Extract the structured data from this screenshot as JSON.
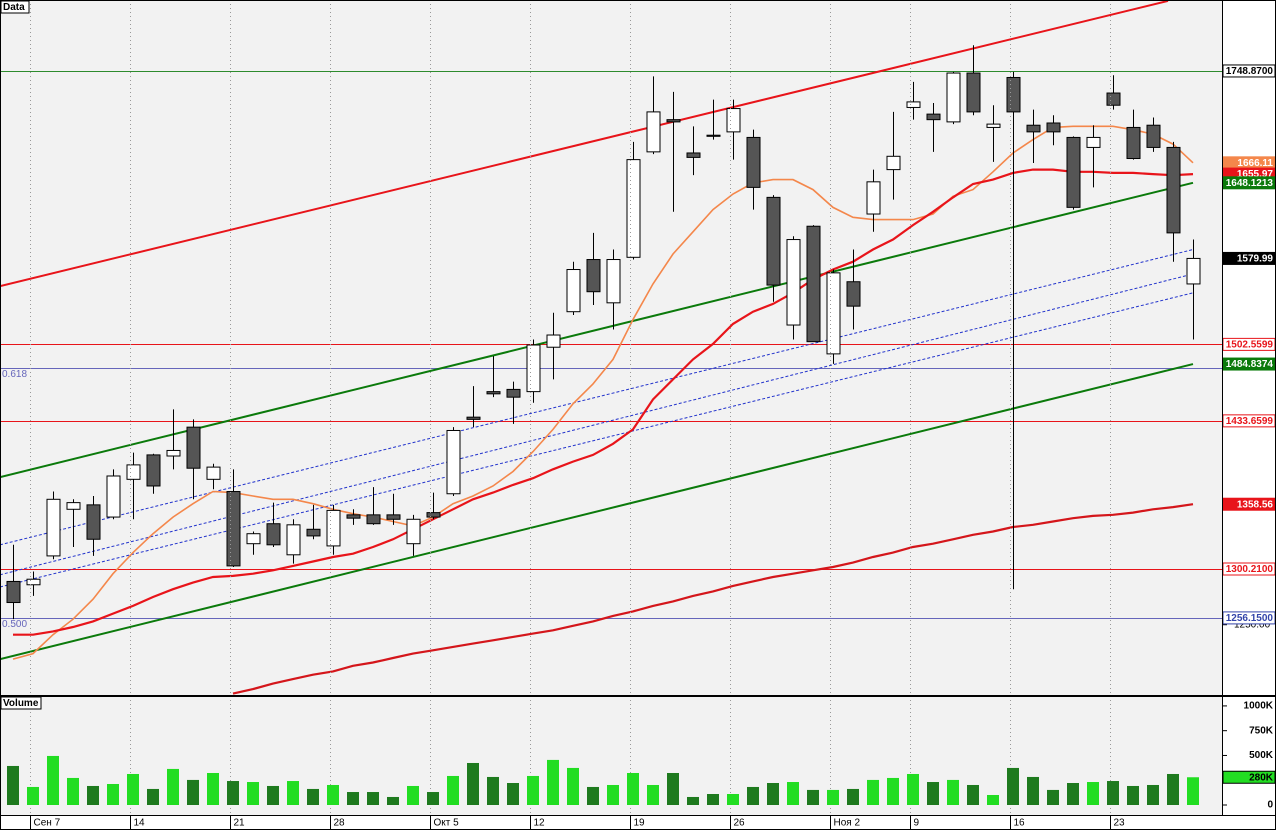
{
  "chart_data": [
    {
      "type": "candlestick",
      "title": "Data",
      "categories": [
        null,
        "Сен 7",
        null,
        null,
        null,
        null,
        "14",
        null,
        null,
        null,
        null,
        "21",
        null,
        null,
        null,
        null,
        "28",
        null,
        null,
        null,
        null,
        "Окт 5",
        null,
        null,
        null,
        null,
        "12",
        null,
        null,
        null,
        null,
        "19",
        null,
        null,
        null,
        null,
        "26",
        null,
        null,
        null,
        null,
        "Ноя 2",
        null,
        null,
        null,
        "9",
        null,
        null,
        null,
        null,
        "16",
        null,
        null,
        null,
        null,
        "23",
        null,
        null,
        null,
        null
      ],
      "open": [
        1289,
        1286,
        1312,
        1354,
        1358,
        1347,
        1381,
        1403,
        1402,
        1428,
        1381,
        1370,
        1323,
        1341,
        1313,
        1336,
        1321,
        1349,
        1349,
        1349,
        1323,
        1351,
        1368,
        1437,
        1460,
        1462,
        1460,
        1500,
        1532,
        1579,
        1540,
        1581,
        1676,
        1705,
        1675,
        1691,
        1694,
        1689,
        1635,
        1520,
        1609,
        1494,
        1559,
        1620,
        1660,
        1716,
        1710,
        1703,
        1747,
        1698,
        1743,
        1700,
        1702,
        1689,
        1680,
        1729,
        1698,
        1700,
        1680,
        1557
      ],
      "high": [
        1322,
        1298,
        1370,
        1363,
        1366,
        1390,
        1405,
        1404,
        1444,
        1435,
        1395,
        1390,
        1334,
        1360,
        1345,
        1358,
        1358,
        1354,
        1374,
        1368,
        1349,
        1369,
        1428,
        1465,
        1492,
        1469,
        1507,
        1531,
        1577,
        1603,
        1588,
        1685,
        1744,
        1730,
        1699,
        1723,
        1723,
        1696,
        1637,
        1600,
        1610,
        1570,
        1588,
        1660,
        1712,
        1739,
        1720,
        1748,
        1772,
        1718,
        1748,
        1714,
        1709,
        1690,
        1700,
        1745,
        1714,
        1707,
        1685,
        1597
      ],
      "low": [
        1255,
        1276,
        1309,
        1320,
        1312,
        1345,
        1345,
        1368,
        1390,
        1363,
        1372,
        1302,
        1313,
        1320,
        1305,
        1327,
        1313,
        1340,
        1340,
        1340,
        1312,
        1345,
        1366,
        1428,
        1455,
        1431,
        1450,
        1471,
        1529,
        1538,
        1516,
        1579,
        1674,
        1622,
        1655,
        1687,
        1669,
        1624,
        1541,
        1507,
        1505,
        1485,
        1516,
        1604,
        1633,
        1705,
        1676,
        1701,
        1709,
        1667,
        1282,
        1666,
        1682,
        1624,
        1644,
        1714,
        1669,
        1676,
        1577,
        1507
      ],
      "close": [
        1270,
        1291,
        1363,
        1360,
        1327,
        1384,
        1394,
        1375,
        1407,
        1391,
        1392,
        1303,
        1332,
        1322,
        1340,
        1330,
        1353,
        1346,
        1341,
        1345,
        1345,
        1347,
        1425,
        1435,
        1458,
        1455,
        1502,
        1511,
        1570,
        1550,
        1579,
        1669,
        1712,
        1703,
        1671,
        1690,
        1715,
        1644,
        1556,
        1597,
        1505,
        1567,
        1537,
        1649,
        1672,
        1721,
        1705,
        1747,
        1712,
        1701,
        1712,
        1694,
        1694,
        1626,
        1689,
        1718,
        1670,
        1680,
        1603,
        1579.99
      ],
      "up_color": "#ffffff",
      "down_color": "#555555",
      "series": [
        {
          "color": "#f4874b",
          "values": [
            1219,
            1224,
            1241,
            1255,
            1273,
            1296,
            1315,
            1332,
            1347,
            1359,
            1370,
            1369,
            1366,
            1363,
            1363,
            1359,
            1354,
            1350,
            1347,
            1343,
            1339,
            1347,
            1359,
            1366,
            1375,
            1388,
            1406,
            1426,
            1449,
            1467,
            1489,
            1525,
            1557,
            1584,
            1604,
            1624,
            1638,
            1648,
            1651,
            1651,
            1642,
            1626,
            1617,
            1615,
            1615,
            1615,
            1620,
            1636,
            1642,
            1658,
            1675,
            1687,
            1698,
            1699,
            1699,
            1699,
            1696,
            1692,
            1683,
            1666.11
          ]
        },
        {
          "color": "#e8141a",
          "values": [
            1241,
            1241,
            1244,
            1248,
            1253,
            1260,
            1267,
            1275,
            1282,
            1288,
            1293,
            1294,
            1296,
            1299,
            1303,
            1307,
            1311,
            1314,
            1320,
            1327,
            1336,
            1345,
            1354,
            1363,
            1369,
            1376,
            1382,
            1390,
            1397,
            1403,
            1413,
            1426,
            1453,
            1471,
            1489,
            1503,
            1521,
            1532,
            1539,
            1549,
            1561,
            1570,
            1577,
            1588,
            1597,
            1610,
            1622,
            1635,
            1647,
            1651,
            1657,
            1660,
            1660,
            1658,
            1658,
            1657,
            1657,
            1656,
            1655,
            1655.97
          ]
        },
        {
          "color": "#d4161b",
          "values": [
            null,
            null,
            null,
            null,
            null,
            null,
            null,
            null,
            null,
            null,
            null,
            1188,
            1192,
            1197,
            1201,
            1205,
            1208,
            1213,
            1216,
            1220,
            1224,
            1227,
            1230,
            1233,
            1236,
            1239,
            1242,
            1245,
            1249,
            1253,
            1258,
            1262,
            1267,
            1271,
            1276,
            1280,
            1285,
            1289,
            1293,
            1296,
            1299,
            1302,
            1306,
            1311,
            1315,
            1320,
            1323,
            1327,
            1331,
            1334,
            1338,
            1340,
            1343,
            1346,
            1348,
            1349,
            1351,
            1354,
            1356,
            1358.56
          ]
        }
      ],
      "trendlines": [
        {
          "color": "#e8141a",
          "dash": false,
          "x": [
            -0.65,
            57.75
          ],
          "values": [
            1555,
            1812
          ]
        },
        {
          "color": "#0b7a0b",
          "dash": false,
          "x": [
            -0.65,
            59
          ],
          "values": [
            1383,
            1648.1213
          ]
        },
        {
          "color": "#0b7a0b",
          "dash": false,
          "x": [
            -0.65,
            59
          ],
          "values": [
            1219,
            1484.8374
          ]
        },
        {
          "color": "#2233cc",
          "dash": true,
          "x": [
            -0.65,
            59
          ],
          "values": [
            1322,
            1588
          ]
        },
        {
          "color": "#2233cc",
          "dash": true,
          "x": [
            -0.65,
            59
          ],
          "values": [
            1295,
            1566
          ]
        },
        {
          "color": "#2233cc",
          "dash": true,
          "x": [
            -0.65,
            59
          ],
          "values": [
            1284,
            1549
          ]
        }
      ],
      "levels": [
        {
          "value": 1748.87,
          "color": "#2e8b2e"
        },
        {
          "value": 1502.5599,
          "color": "#e8141a"
        },
        {
          "value": 1481,
          "color": "#6666bb",
          "label": "0.618"
        },
        {
          "value": 1433.6599,
          "color": "#e8141a"
        },
        {
          "value": 1300.21,
          "color": "#e8141a"
        },
        {
          "value": 1256.15,
          "color": "#6666bb",
          "label": "0.500"
        }
      ],
      "tags": [
        {
          "value": 1748.87,
          "label": "1748.8700",
          "bg": "#ffffff",
          "fg": "#000000"
        },
        {
          "value": 1666.11,
          "label": "1666.11",
          "bg": "#f4874b",
          "fg": "#ffffff"
        },
        {
          "value": 1655.97,
          "label": "1655.97",
          "bg": "#e8141a",
          "fg": "#ffffff"
        },
        {
          "value": 1648.1213,
          "label": "1648.1213",
          "bg": "#0b7a0b",
          "fg": "#ffffff"
        },
        {
          "value": 1579.99,
          "label": "1579.99",
          "bg": "#000000",
          "fg": "#ffffff"
        },
        {
          "value": 1502.5599,
          "label": "1502.5599",
          "bg": "#ffffff",
          "fg": "#e8141a"
        },
        {
          "value": 1484.8374,
          "label": "1484.8374",
          "bg": "#0b7a0b",
          "fg": "#ffffff"
        },
        {
          "value": 1433.6599,
          "label": "1433.6599",
          "bg": "#ffffff",
          "fg": "#e8141a"
        },
        {
          "value": 1358.56,
          "label": "1358.56",
          "bg": "#e8141a",
          "fg": "#ffffff"
        },
        {
          "value": 1300.21,
          "label": "1300.2100",
          "bg": "#ffffff",
          "fg": "#e8141a"
        },
        {
          "value": 1256.15,
          "label": "1256.1500",
          "bg": "#ffffff",
          "fg": "#3344aa"
        }
      ],
      "ylim": [
        1186.7,
        1812.8
      ],
      "yticks": [
        {
          "value": 1250,
          "label": "1250.00"
        }
      ]
    },
    {
      "type": "bar",
      "title": "Volume",
      "values": [
        394,
        182,
        495,
        273,
        192,
        212,
        313,
        162,
        364,
        253,
        323,
        242,
        232,
        192,
        242,
        162,
        202,
        131,
        131,
        81,
        192,
        131,
        293,
        424,
        283,
        222,
        293,
        455,
        374,
        182,
        202,
        323,
        202,
        323,
        81,
        111,
        111,
        182,
        222,
        232,
        152,
        152,
        162,
        253,
        273,
        313,
        232,
        253,
        202,
        101,
        374,
        283,
        152,
        222,
        232,
        242,
        192,
        202,
        313,
        280
      ],
      "value_labels": [
        null,
        null,
        null,
        null,
        null,
        null,
        null,
        null,
        null,
        null,
        null,
        null,
        null,
        null,
        null,
        null,
        null,
        null,
        null,
        null,
        null,
        null,
        null,
        null,
        null,
        null,
        null,
        null,
        null,
        null,
        null,
        null,
        null,
        null,
        null,
        null,
        null,
        null,
        null,
        null,
        null,
        null,
        null,
        null,
        null,
        null,
        null,
        null,
        null,
        null,
        null,
        null,
        null,
        null,
        null,
        null,
        null,
        null,
        null,
        "280K"
      ],
      "up_color": "#22dd22",
      "down_color": "#1e7a1e",
      "ylim": [
        0,
        1090
      ],
      "yticks": [
        0,
        {
          "value": 500,
          "label": "500K"
        },
        {
          "value": 750,
          "label": "750K"
        },
        {
          "value": 1000,
          "label": "1000K"
        }
      ]
    }
  ]
}
